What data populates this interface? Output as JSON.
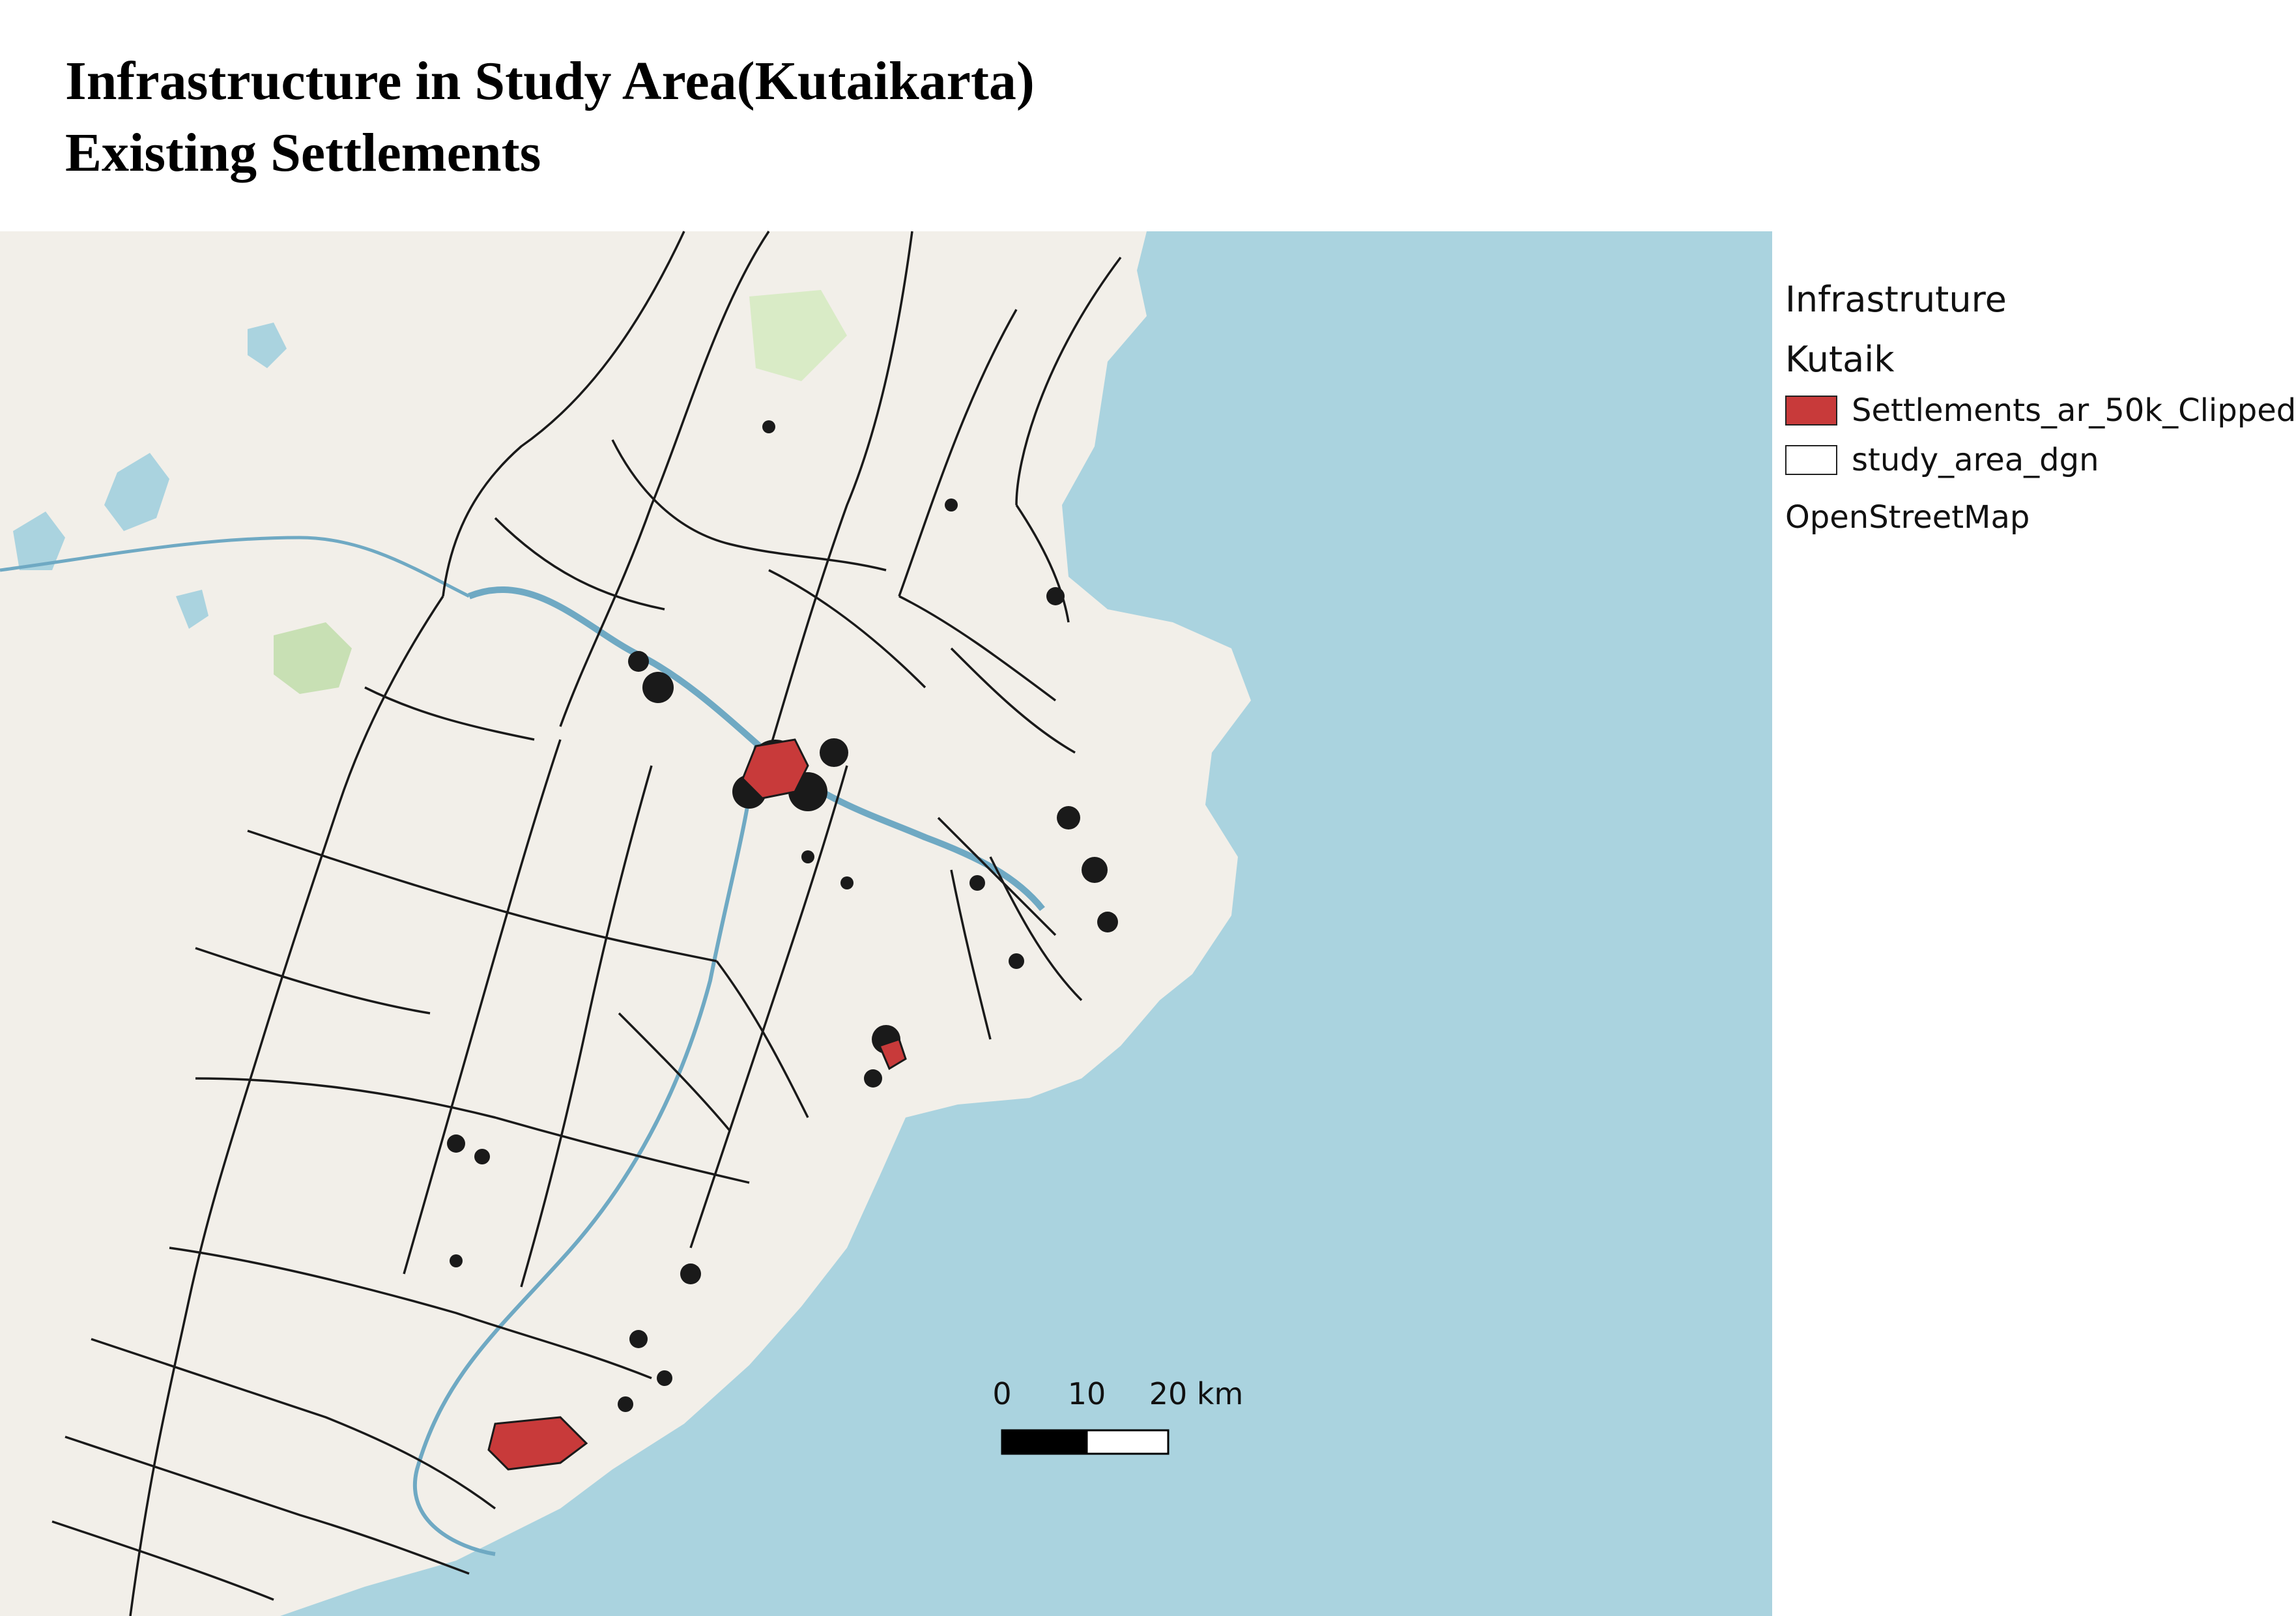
{
  "title": {
    "line1": "Infrastructure in Study Area(Kutaikarta)",
    "line2": "Existing Settlements"
  },
  "legend": {
    "title": "Infrastruture",
    "group": "Kutaik",
    "items": [
      {
        "label": "Settlements_ar_50k_Clipped",
        "fill": "#c83a3a"
      },
      {
        "label": "study_area_dgn",
        "fill": "#ffffff"
      }
    ],
    "basemap": "OpenStreetMap"
  },
  "scale_bar": {
    "labels": [
      "0",
      "10",
      "20 km"
    ]
  },
  "colors": {
    "sea": "#aad3df",
    "land": "#f2efe9",
    "settlement": "#c83a3a",
    "boundary": "#1a1a1a"
  }
}
